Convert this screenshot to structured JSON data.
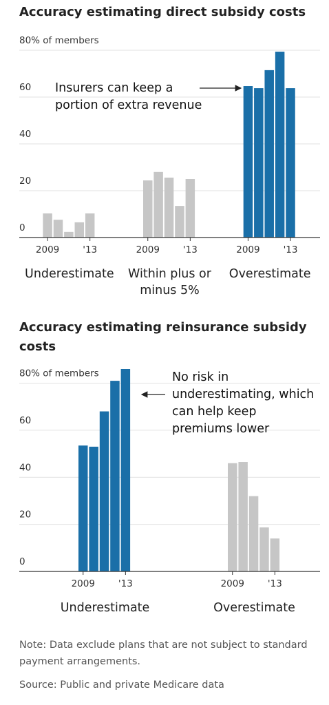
{
  "chart_data": [
    {
      "type": "grouped-bar",
      "title": "Accuracy estimating direct subsidy costs",
      "ylim": [
        0,
        80
      ],
      "yticks": [
        0,
        20,
        40,
        60,
        {
          "value": 80,
          "label": "80% of members"
        }
      ],
      "grid": true,
      "x_labels": [
        "2009",
        null,
        null,
        null,
        "'13"
      ],
      "groups": [
        {
          "name": "Underestimate",
          "color": "#c6c6c6",
          "values": [
            10.3,
            7.6,
            2.4,
            6.5,
            10.3
          ]
        },
        {
          "name": "Within plus or minus 5%",
          "color": "#c6c6c6",
          "values": [
            24.4,
            28,
            25.6,
            13.5,
            25
          ]
        },
        {
          "name": "Overestimate",
          "color": "#1a6fa8",
          "values": [
            64.7,
            63.8,
            71.5,
            79.4,
            63.8
          ]
        }
      ],
      "annotation": "Insurers can keep a portion of extra revenue"
    },
    {
      "type": "grouped-bar",
      "title": "Accuracy estimating reinsurance subsidy costs",
      "ylim": [
        0,
        86
      ],
      "yticks": [
        0,
        20,
        40,
        60,
        {
          "value": 80,
          "label": "80% of members"
        }
      ],
      "grid": true,
      "x_labels": [
        "2009",
        null,
        null,
        null,
        "'13"
      ],
      "groups": [
        {
          "name": "Underestimate",
          "color": "#1a6fa8",
          "values": [
            53.5,
            53,
            68,
            81,
            86
          ]
        },
        {
          "name": "Overestimate",
          "color": "#c6c6c6",
          "values": [
            46,
            46.5,
            32,
            18.7,
            14
          ]
        }
      ],
      "annotation": "No risk in underestimating, which can help keep premiums lower"
    }
  ],
  "note": "Note: Data exclude plans that are not subject to standard payment arrangements.",
  "source": "Source: Public and private Medicare data"
}
